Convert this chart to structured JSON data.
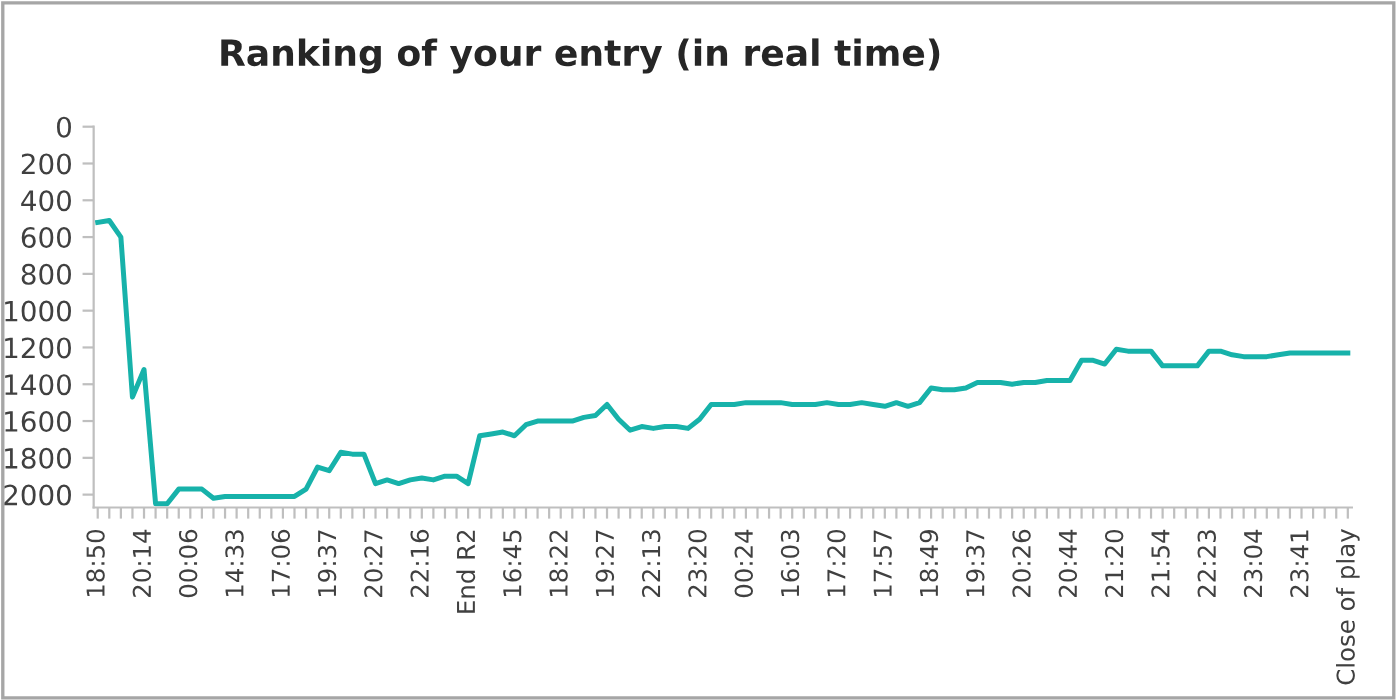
{
  "chart_data": {
    "type": "line",
    "title": "Ranking of your entry (in real time)",
    "categories": [
      "18:50",
      null,
      null,
      null,
      "20:14",
      null,
      null,
      null,
      "00:06",
      null,
      null,
      null,
      "14:33",
      null,
      null,
      null,
      "17:06",
      null,
      null,
      null,
      "19:37",
      null,
      null,
      null,
      "20:27",
      null,
      null,
      null,
      "22:16",
      null,
      null,
      null,
      "End R2",
      null,
      null,
      null,
      "16:45",
      null,
      null,
      null,
      "18:22",
      null,
      null,
      null,
      "19:27",
      null,
      null,
      null,
      "22:13",
      null,
      null,
      null,
      "23:20",
      null,
      null,
      null,
      "00:24",
      null,
      null,
      null,
      "16:03",
      null,
      null,
      null,
      "17:20",
      null,
      null,
      null,
      "17:57",
      null,
      null,
      null,
      "18:49",
      null,
      null,
      null,
      "19:37",
      null,
      null,
      null,
      "20:26",
      null,
      null,
      null,
      "20:44",
      null,
      null,
      null,
      "21:20",
      null,
      null,
      null,
      "21:54",
      null,
      null,
      null,
      "22:23",
      null,
      null,
      null,
      "23:04",
      null,
      null,
      null,
      "23:41",
      null,
      null,
      null,
      "Close of play"
    ],
    "series": [
      {
        "color": "#17b2aa",
        "values": [
          520,
          510,
          600,
          1470,
          1320,
          2050,
          2050,
          1970,
          1970,
          1970,
          2020,
          2010,
          2010,
          2010,
          2010,
          2010,
          2010,
          2010,
          1970,
          1850,
          1870,
          1770,
          1780,
          1780,
          1940,
          1920,
          1940,
          1920,
          1910,
          1920,
          1900,
          1900,
          1940,
          1680,
          1670,
          1660,
          1680,
          1620,
          1600,
          1600,
          1600,
          1600,
          1580,
          1570,
          1510,
          1590,
          1650,
          1630,
          1640,
          1630,
          1630,
          1640,
          1590,
          1510,
          1510,
          1510,
          1500,
          1500,
          1500,
          1500,
          1510,
          1510,
          1510,
          1500,
          1510,
          1510,
          1500,
          1510,
          1520,
          1500,
          1520,
          1500,
          1420,
          1430,
          1430,
          1420,
          1390,
          1390,
          1390,
          1400,
          1390,
          1390,
          1380,
          1380,
          1380,
          1270,
          1270,
          1290,
          1210,
          1220,
          1220,
          1220,
          1300,
          1300,
          1300,
          1300,
          1220,
          1220,
          1240,
          1250,
          1250,
          1250,
          1240,
          1230,
          1230,
          1230,
          1230,
          1230,
          1230
        ]
      }
    ],
    "ylim": [
      2070,
      0
    ],
    "yticks": [
      0,
      200,
      400,
      600,
      800,
      1000,
      1200,
      1400,
      1600,
      1800,
      2000
    ],
    "grid": false,
    "marker": "none",
    "line_style": "solid"
  }
}
